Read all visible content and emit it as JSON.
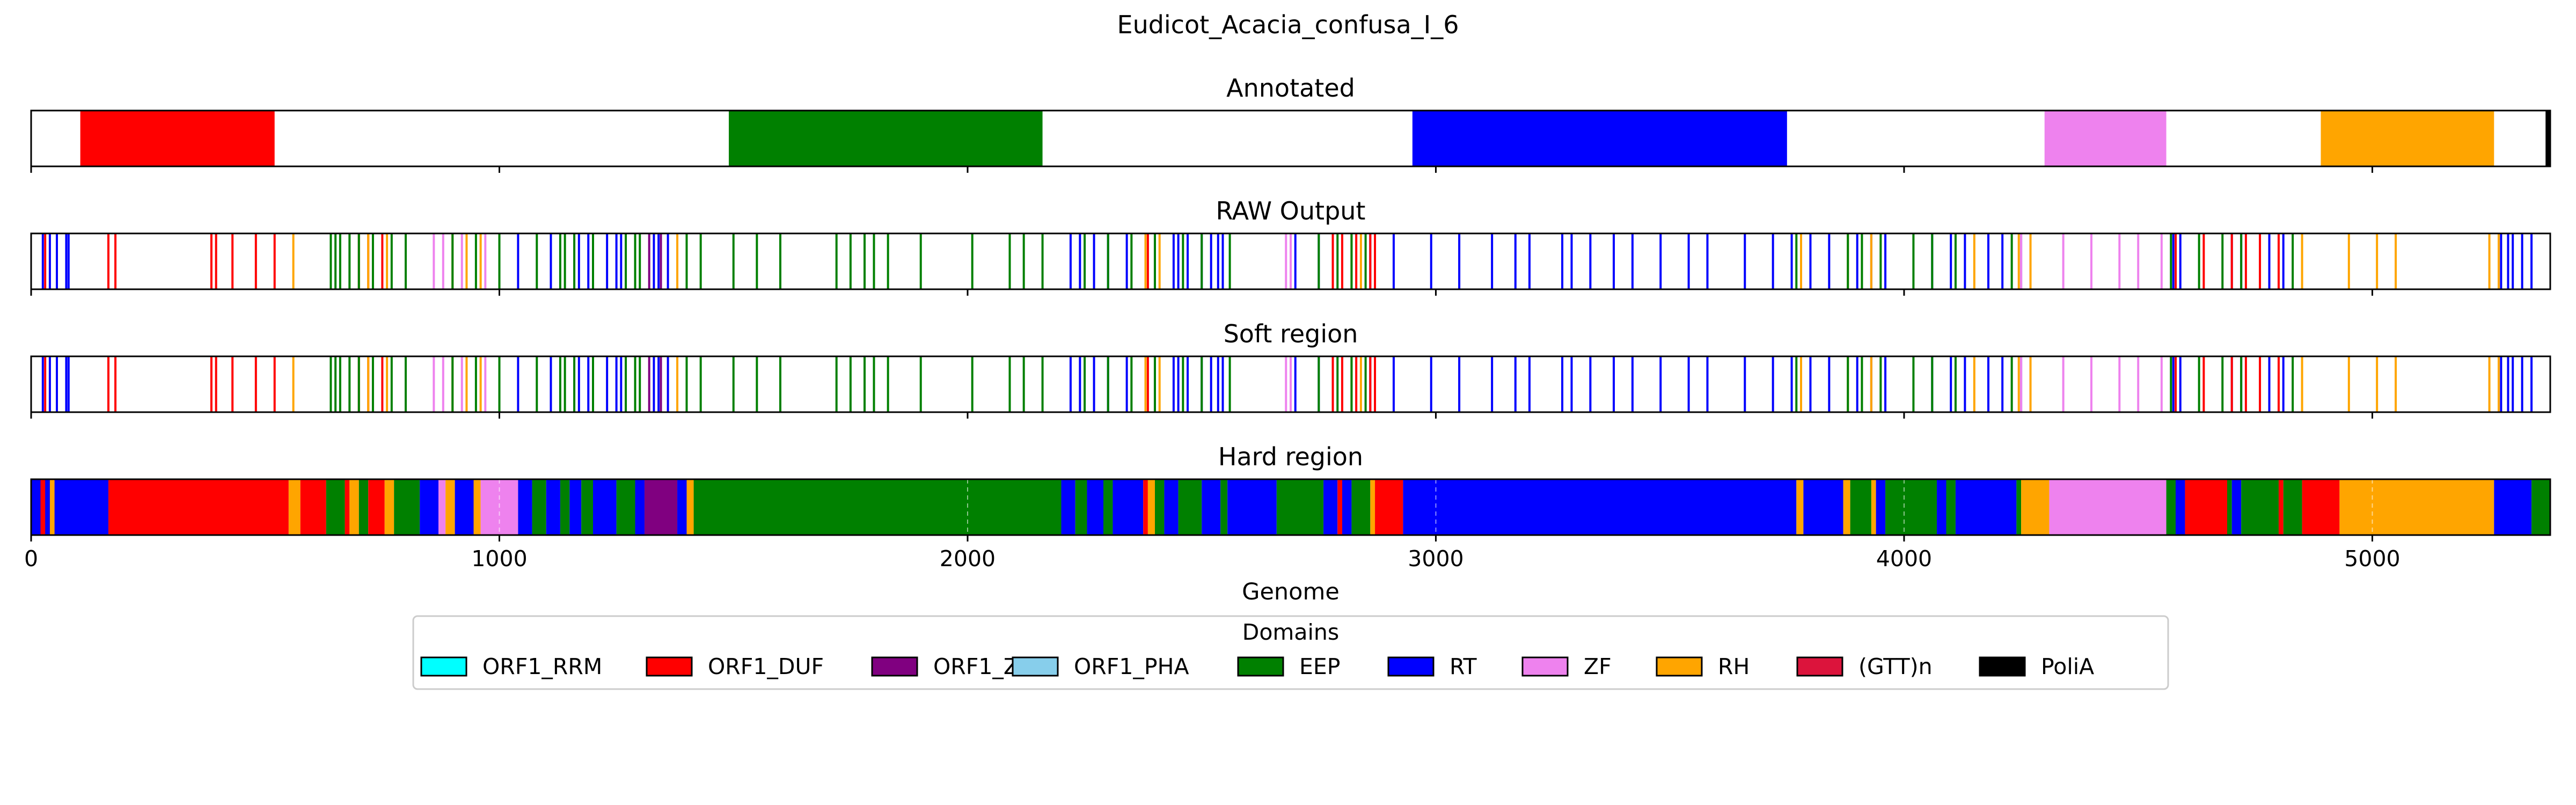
{
  "title": "Eudicot_Acacia_confusa_I_6",
  "xlabel": "Genome",
  "legend_title": "Domains",
  "domains": [
    {
      "name": "ORF1_RRM",
      "color": "#00ffff"
    },
    {
      "name": "ORF1_DUF",
      "color": "#ff0000"
    },
    {
      "name": "ORF1_Zf",
      "color": "#800080"
    },
    {
      "name": "ORF1_PHA",
      "color": "#87ceeb"
    },
    {
      "name": "EEP",
      "color": "#008000"
    },
    {
      "name": "RT",
      "color": "#0000ff"
    },
    {
      "name": "ZF",
      "color": "#ee82ee"
    },
    {
      "name": "RH",
      "color": "#ffa500"
    },
    {
      "name": "(GTT)n",
      "color": "#dc143c"
    },
    {
      "name": "PoliA",
      "color": "#000000"
    }
  ],
  "chart_data": [
    {
      "type": "bar",
      "title": "Annotated",
      "xlim": [
        0,
        5380
      ],
      "segments": [
        {
          "domain": "ORF1_DUF",
          "start": 105,
          "end": 520
        },
        {
          "domain": "EEP",
          "start": 1490,
          "end": 2160
        },
        {
          "domain": "RT",
          "start": 2950,
          "end": 3750
        },
        {
          "domain": "ZF",
          "start": 4300,
          "end": 4560
        },
        {
          "domain": "RH",
          "start": 4890,
          "end": 5260
        },
        {
          "domain": "PoliA",
          "start": 5370,
          "end": 5380
        }
      ]
    },
    {
      "type": "bar",
      "title": "RAW Output",
      "xlim": [
        0,
        5380
      ],
      "marks": [
        {
          "domain": "RT",
          "x": [
            25,
            40,
            55,
            75,
            80,
            1040,
            1110,
            1170,
            1190,
            1230,
            1250,
            1260,
            1330,
            1340,
            1360,
            2220,
            2240,
            2270,
            2300,
            2340,
            2400,
            2440,
            2450,
            2470,
            2500,
            2520,
            2535,
            2545,
            2700,
            2750,
            2780,
            2860,
            2910,
            2990,
            3050,
            3120,
            3170,
            3200,
            3270,
            3290,
            3330,
            3380,
            3420,
            3480,
            3540,
            3580,
            3660,
            3720,
            3760,
            3800,
            3840,
            3900,
            3930,
            3960,
            4060,
            4100,
            4130,
            4180,
            4210,
            4250,
            4575,
            4590,
            4700,
            4720,
            4780,
            4810,
            5275,
            5290,
            5300,
            5320,
            5340
          ]
        },
        {
          "domain": "ORF1_DUF",
          "x": [
            30,
            165,
            180,
            385,
            395,
            430,
            480,
            520,
            700,
            720,
            750,
            2385,
            2780,
            2800,
            2830,
            2860,
            2870,
            4580,
            4640,
            4700,
            4730,
            4760,
            4800
          ]
        },
        {
          "domain": "RH",
          "x": [
            560,
            720,
            760,
            900,
            930,
            960,
            1380,
            2380,
            2410,
            2820,
            2840,
            3780,
            3880,
            3930,
            4150,
            4245,
            4270,
            4850,
            4950,
            5010,
            5050,
            5250,
            5270
          ]
        },
        {
          "domain": "EEP",
          "x": [
            640,
            650,
            660,
            680,
            700,
            730,
            770,
            800,
            900,
            950,
            1000,
            1080,
            1130,
            1140,
            1160,
            1200,
            1270,
            1290,
            1300,
            1400,
            1430,
            1500,
            1550,
            1600,
            1720,
            1750,
            1780,
            1800,
            1830,
            1900,
            2010,
            2090,
            2120,
            2160,
            2250,
            2300,
            2350,
            2400,
            2460,
            2500,
            2560,
            2750,
            2790,
            2820,
            2850,
            3770,
            3880,
            3910,
            3950,
            4020,
            4060,
            4110,
            4230,
            4570,
            4630,
            4680,
            4720,
            4830
          ]
        },
        {
          "domain": "ZF",
          "x": [
            860,
            880,
            920,
            970,
            2680,
            2690,
            4250,
            4340,
            4400,
            4460,
            4500,
            4550
          ]
        },
        {
          "domain": "ORF1_Zf",
          "x": [
            1320,
            1345
          ]
        }
      ]
    },
    {
      "type": "bar",
      "title": "Soft region",
      "xlim": [
        0,
        5380
      ],
      "marks": [
        {
          "domain": "RT",
          "x": [
            25,
            40,
            55,
            75,
            80,
            1040,
            1110,
            1170,
            1190,
            1230,
            1250,
            1260,
            1330,
            1340,
            1360,
            2220,
            2240,
            2270,
            2300,
            2340,
            2400,
            2440,
            2450,
            2470,
            2500,
            2520,
            2535,
            2545,
            2700,
            2750,
            2780,
            2860,
            2910,
            2990,
            3050,
            3120,
            3170,
            3200,
            3270,
            3290,
            3330,
            3380,
            3420,
            3480,
            3540,
            3580,
            3660,
            3720,
            3760,
            3800,
            3840,
            3900,
            3930,
            3960,
            4060,
            4100,
            4130,
            4180,
            4210,
            4250,
            4575,
            4590,
            4700,
            4720,
            4780,
            4810,
            5275,
            5290,
            5300,
            5320,
            5340
          ]
        },
        {
          "domain": "ORF1_DUF",
          "x": [
            30,
            165,
            180,
            385,
            395,
            430,
            480,
            520,
            700,
            720,
            750,
            2385,
            2780,
            2800,
            2830,
            2860,
            2870,
            4580,
            4640,
            4700,
            4730,
            4760,
            4800
          ]
        },
        {
          "domain": "RH",
          "x": [
            560,
            720,
            760,
            900,
            930,
            960,
            1380,
            2380,
            2410,
            2820,
            2840,
            3780,
            3880,
            3930,
            4150,
            4245,
            4270,
            4850,
            4950,
            5010,
            5050,
            5250,
            5270
          ]
        },
        {
          "domain": "EEP",
          "x": [
            640,
            650,
            660,
            680,
            700,
            730,
            770,
            800,
            900,
            950,
            1000,
            1080,
            1130,
            1140,
            1160,
            1200,
            1270,
            1290,
            1300,
            1400,
            1430,
            1500,
            1550,
            1600,
            1720,
            1750,
            1780,
            1800,
            1830,
            1900,
            2010,
            2090,
            2120,
            2160,
            2250,
            2300,
            2350,
            2400,
            2460,
            2500,
            2560,
            2750,
            2790,
            2820,
            2850,
            3770,
            3880,
            3910,
            3950,
            4020,
            4060,
            4110,
            4230,
            4570,
            4630,
            4680,
            4720,
            4830
          ]
        },
        {
          "domain": "ZF",
          "x": [
            860,
            880,
            920,
            970,
            2680,
            2690,
            4250,
            4340,
            4400,
            4460,
            4500,
            4550
          ]
        },
        {
          "domain": "ORF1_Zf",
          "x": [
            1320,
            1345
          ]
        }
      ]
    },
    {
      "type": "bar",
      "title": "Hard region",
      "xlim": [
        0,
        5380
      ],
      "xticks": [
        0,
        1000,
        2000,
        3000,
        4000,
        5000
      ],
      "xtick_labels": [
        "0",
        "1000",
        "2000",
        "3000",
        "4000",
        "5000"
      ],
      "grid": true,
      "segments": [
        {
          "domain": "RT",
          "start": 0,
          "end": 165
        },
        {
          "domain": "ORF1_DUF",
          "start": 20,
          "end": 30
        },
        {
          "domain": "RH",
          "start": 40,
          "end": 50
        },
        {
          "domain": "ORF1_DUF",
          "start": 165,
          "end": 550
        },
        {
          "domain": "RH",
          "start": 550,
          "end": 575
        },
        {
          "domain": "ORF1_DUF",
          "start": 575,
          "end": 630
        },
        {
          "domain": "EEP",
          "start": 630,
          "end": 670
        },
        {
          "domain": "ORF1_DUF",
          "start": 670,
          "end": 680
        },
        {
          "domain": "RH",
          "start": 680,
          "end": 700
        },
        {
          "domain": "EEP",
          "start": 700,
          "end": 720
        },
        {
          "domain": "ORF1_DUF",
          "start": 720,
          "end": 755
        },
        {
          "domain": "RH",
          "start": 755,
          "end": 775
        },
        {
          "domain": "EEP",
          "start": 775,
          "end": 830
        },
        {
          "domain": "RT",
          "start": 830,
          "end": 870
        },
        {
          "domain": "ZF",
          "start": 870,
          "end": 885
        },
        {
          "domain": "RH",
          "start": 885,
          "end": 905
        },
        {
          "domain": "RT",
          "start": 905,
          "end": 945
        },
        {
          "domain": "RH",
          "start": 945,
          "end": 960
        },
        {
          "domain": "ZF",
          "start": 960,
          "end": 1040
        },
        {
          "domain": "RT",
          "start": 1040,
          "end": 1070
        },
        {
          "domain": "EEP",
          "start": 1070,
          "end": 1100
        },
        {
          "domain": "RT",
          "start": 1100,
          "end": 1130
        },
        {
          "domain": "EEP",
          "start": 1130,
          "end": 1150
        },
        {
          "domain": "RT",
          "start": 1150,
          "end": 1175
        },
        {
          "domain": "EEP",
          "start": 1175,
          "end": 1200
        },
        {
          "domain": "RT",
          "start": 1200,
          "end": 1250
        },
        {
          "domain": "EEP",
          "start": 1250,
          "end": 1290
        },
        {
          "domain": "RT",
          "start": 1290,
          "end": 1310
        },
        {
          "domain": "ORF1_Zf",
          "start": 1310,
          "end": 1380
        },
        {
          "domain": "RT",
          "start": 1380,
          "end": 1400
        },
        {
          "domain": "RH",
          "start": 1400,
          "end": 1415
        },
        {
          "domain": "EEP",
          "start": 1415,
          "end": 2200
        },
        {
          "domain": "RT",
          "start": 2200,
          "end": 2230
        },
        {
          "domain": "EEP",
          "start": 2230,
          "end": 2255
        },
        {
          "domain": "RT",
          "start": 2255,
          "end": 2290
        },
        {
          "domain": "EEP",
          "start": 2290,
          "end": 2310
        },
        {
          "domain": "RT",
          "start": 2310,
          "end": 2375
        },
        {
          "domain": "ORF1_DUF",
          "start": 2375,
          "end": 2385
        },
        {
          "domain": "RH",
          "start": 2385,
          "end": 2400
        },
        {
          "domain": "EEP",
          "start": 2400,
          "end": 2420
        },
        {
          "domain": "RT",
          "start": 2420,
          "end": 2450
        },
        {
          "domain": "EEP",
          "start": 2450,
          "end": 2500
        },
        {
          "domain": "RT",
          "start": 2500,
          "end": 2540
        },
        {
          "domain": "EEP",
          "start": 2540,
          "end": 2555
        },
        {
          "domain": "RT",
          "start": 2555,
          "end": 2660
        },
        {
          "domain": "EEP",
          "start": 2660,
          "end": 2760
        },
        {
          "domain": "RT",
          "start": 2760,
          "end": 2790
        },
        {
          "domain": "ORF1_DUF",
          "start": 2790,
          "end": 2800
        },
        {
          "domain": "RT",
          "start": 2800,
          "end": 2820
        },
        {
          "domain": "EEP",
          "start": 2820,
          "end": 2860
        },
        {
          "domain": "RH",
          "start": 2860,
          "end": 2870
        },
        {
          "domain": "ORF1_DUF",
          "start": 2870,
          "end": 2930
        },
        {
          "domain": "RT",
          "start": 2930,
          "end": 3770
        },
        {
          "domain": "RH",
          "start": 3770,
          "end": 3785
        },
        {
          "domain": "RT",
          "start": 3785,
          "end": 3870
        },
        {
          "domain": "RH",
          "start": 3870,
          "end": 3885
        },
        {
          "domain": "EEP",
          "start": 3885,
          "end": 3930
        },
        {
          "domain": "RH",
          "start": 3930,
          "end": 3940
        },
        {
          "domain": "RT",
          "start": 3940,
          "end": 3960
        },
        {
          "domain": "EEP",
          "start": 3960,
          "end": 4070
        },
        {
          "domain": "RT",
          "start": 4070,
          "end": 4090
        },
        {
          "domain": "EEP",
          "start": 4090,
          "end": 4110
        },
        {
          "domain": "RT",
          "start": 4110,
          "end": 4240
        },
        {
          "domain": "EEP",
          "start": 4240,
          "end": 4250
        },
        {
          "domain": "RH",
          "start": 4250,
          "end": 4310
        },
        {
          "domain": "ZF",
          "start": 4310,
          "end": 4560
        },
        {
          "domain": "EEP",
          "start": 4560,
          "end": 4580
        },
        {
          "domain": "RT",
          "start": 4580,
          "end": 4600
        },
        {
          "domain": "ORF1_DUF",
          "start": 4600,
          "end": 4690
        },
        {
          "domain": "EEP",
          "start": 4690,
          "end": 4700
        },
        {
          "domain": "RT",
          "start": 4700,
          "end": 4720
        },
        {
          "domain": "EEP",
          "start": 4720,
          "end": 4800
        },
        {
          "domain": "ORF1_DUF",
          "start": 4800,
          "end": 4810
        },
        {
          "domain": "EEP",
          "start": 4810,
          "end": 4850
        },
        {
          "domain": "ORF1_DUF",
          "start": 4850,
          "end": 4930
        },
        {
          "domain": "RH",
          "start": 4930,
          "end": 5260
        },
        {
          "domain": "RT",
          "start": 5260,
          "end": 5340
        },
        {
          "domain": "EEP",
          "start": 5340,
          "end": 5380
        }
      ]
    }
  ]
}
